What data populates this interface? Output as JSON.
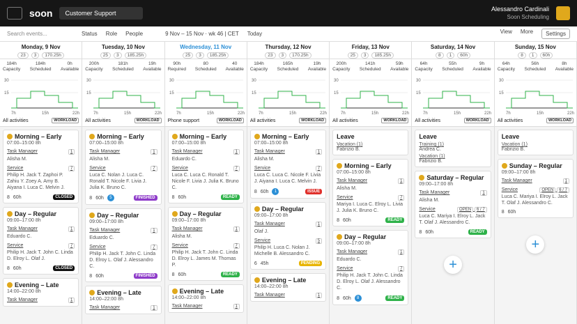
{
  "header": {
    "logo": "soon",
    "workspace": "Customer Support",
    "user": "Alessandro Cardinali",
    "org": "Soon Scheduling"
  },
  "toolbar": {
    "search": "Search events...",
    "status": "Status",
    "role": "Role",
    "people": "People",
    "range": "9 Nov – 15 Nov · wk 46 | CET",
    "today": "Today",
    "view": "View",
    "more": "More",
    "settings": "Settings"
  },
  "chart_axis": {
    "yticks": [
      "30",
      "15"
    ],
    "xticks": [
      "7h",
      "15h",
      "22h"
    ]
  },
  "days": [
    {
      "name": "Monday, 9 Nov",
      "stats": [
        "23",
        "3",
        "170.25h"
      ],
      "cap": [
        [
          "184h",
          "Capacity"
        ],
        [
          "184h",
          "Scheduled"
        ],
        [
          "0h",
          "Available"
        ]
      ],
      "filter": "All activities",
      "workload": "WORKLOAD",
      "cards": [
        {
          "title": "Morning – Early",
          "time": "07:00–15:00",
          "dur": "8h",
          "tm": "Task Manager",
          "tm_n": "1",
          "tm_p": "Alisha M.",
          "svc": "Service",
          "svc_n": "7",
          "ppl": "Philip H. Jack T. Zaphoi P. Zahiu Y. Zoey A. Amy B. Aiyana I. Luca C. Melvin J.",
          "count": "8",
          "hours": "60h",
          "status": "CLOSED",
          "status_color": "#111"
        },
        {
          "title": "Day – Regular",
          "time": "09:00–17:00",
          "dur": "8h",
          "tm": "Task Manager",
          "tm_n": "1",
          "tm_p": "Eduardo C.",
          "svc": "Service",
          "svc_n": "7",
          "ppl": "Philip H. Jack T. John C. Linda D. Elroy L. Olaf J.",
          "count": "8",
          "hours": "60h",
          "status": "CLOSED",
          "status_color": "#111"
        },
        {
          "title": "Evening – Late",
          "time": "14:00–22:00",
          "dur": "8h",
          "tm": "Task Manager",
          "tm_n": "1"
        }
      ]
    },
    {
      "name": "Tuesday, 10 Nov",
      "stats": [
        "25",
        "3",
        "185.25h"
      ],
      "cap": [
        [
          "200h",
          "Capacity"
        ],
        [
          "181h",
          "Scheduled"
        ],
        [
          "19h",
          "Available"
        ]
      ],
      "filter": "All activities",
      "workload": "WORKLOAD",
      "cards": [
        {
          "title": "Morning – Early",
          "time": "07:00–15:00",
          "dur": "8h",
          "tm": "Task Manager",
          "tm_n": "1",
          "tm_p": "Alisha M.",
          "svc": "Service",
          "svc_n": "7",
          "ppl": "Luca C. Nolan J. Luca C. Ronald T. Nicole F. Livia J. Julia K. Bruno C.",
          "count": "8",
          "hours": "60h",
          "badge": "5",
          "status": "FINISHED",
          "status_color": "#8e3bc9"
        },
        {
          "title": "Day – Regular",
          "time": "09:00–17:00",
          "dur": "8h",
          "tm": "Task Manager",
          "tm_n": "1",
          "tm_p": "Eduardo C.",
          "svc": "Service",
          "svc_n": "7",
          "ppl": "Philip H. Jack T. John C. Linda D. Elroy L. Olaf J. Alessandro C.",
          "count": "8",
          "hours": "60h",
          "status": "FINISHED",
          "status_color": "#8e3bc9"
        },
        {
          "title": "Evening – Late",
          "time": "14:00–22:00",
          "dur": "8h",
          "tm": "Task Manager",
          "tm_n": "1"
        }
      ]
    },
    {
      "name": "Wednesday, 11 Nov",
      "current": true,
      "stats": [
        "25",
        "3",
        "185.25h"
      ],
      "cap": [
        [
          "90h",
          "Required"
        ],
        [
          "80",
          "Scheduled"
        ],
        [
          "40",
          "Available"
        ]
      ],
      "filter": "Phone support",
      "workload": "WORKLOAD",
      "cards": [
        {
          "title": "Morning – Early",
          "time": "07:00–15:00",
          "dur": "8h",
          "tm": "Task Manager",
          "tm_n": "1",
          "tm_p": "Eduardo C.",
          "svc": "Service",
          "svc_n": "7",
          "ppl": "Luca C. Luca C. Ronald T. Nicole F. Livia J. Julia K. Bruno C.",
          "count": "8",
          "hours": "60h",
          "status": "READY",
          "status_color": "#2fb24a"
        },
        {
          "title": "Day – Regular",
          "time": "09:00–17:00",
          "dur": "8h",
          "tm": "Task Manager",
          "tm_n": "1",
          "tm_p": "Alisha M.",
          "svc": "Service",
          "svc_n": "7",
          "ppl": "Philip H. Jack T. John C. Linda D. Elroy L. James M. Thomas P.",
          "count": "8",
          "hours": "60h",
          "status": "READY",
          "status_color": "#2fb24a"
        },
        {
          "title": "Evening – Late",
          "time": "14:00–22:00",
          "dur": "8h",
          "tm": "Task Manager",
          "tm_n": "1"
        }
      ]
    },
    {
      "name": "Thursday, 12 Nov",
      "stats": [
        "23",
        "3",
        "170.25h"
      ],
      "cap": [
        [
          "184h",
          "Capacity"
        ],
        [
          "165h",
          "Scheduled"
        ],
        [
          "19h",
          "Available"
        ]
      ],
      "filter": "All activities",
      "workload": "WORKLOAD",
      "cards": [
        {
          "title": "Morning – Early",
          "time": "07:00–15:00",
          "dur": "8h",
          "tm": "Task Manager",
          "tm_n": "1",
          "tm_p": "Alisha M.",
          "svc": "Service",
          "svc_n": "7",
          "ppl": "Luca C. Luca C. Nicole F. Livia J. Aiyana I. Luca C. Melvin J.",
          "count": "8",
          "hours": "60h",
          "badge": "1",
          "status": "ISSUE",
          "status_color": "#e0302b"
        },
        {
          "title": "Day – Regular",
          "time": "09:00–17:00",
          "dur": "8h",
          "tm": "Task Manager",
          "tm_n": "1",
          "tm_p": "Olaf J.",
          "svc": "Service",
          "svc_n": "5",
          "ppl": "Philip H. Luca C. Nolan J. Michelle B. Alessandro C.",
          "count": "6",
          "hours": "45h",
          "status": "PENDING",
          "status_color": "#e8b400"
        },
        {
          "title": "Evening – Late",
          "time": "14:00–22:00",
          "dur": "8h",
          "tm": "Task Manager",
          "tm_n": "1"
        }
      ]
    },
    {
      "name": "Friday, 13 Nov",
      "stats": [
        "25",
        "3",
        "185.25h"
      ],
      "cap": [
        [
          "200h",
          "Capacity"
        ],
        [
          "141h",
          "Scheduled"
        ],
        [
          "59h",
          "Available"
        ]
      ],
      "filter": "All activities",
      "workload": "WORKLOAD",
      "leave": {
        "title": "Leave",
        "items": [
          {
            "type": "Vacation (1)",
            "person": "Fabrizio B."
          }
        ]
      },
      "cards": [
        {
          "title": "Morning – Early",
          "time": "07:00–15:00",
          "dur": "8h",
          "tm": "Task Manager",
          "tm_n": "1",
          "tm_p": "Alisha M.",
          "svc": "Service",
          "svc_n": "7",
          "ppl": "Mariya I. Luca C. Elroy L. Livia J. Julia K. Bruno C.",
          "count": "8",
          "hours": "60h",
          "status": "READY",
          "status_color": "#2fb24a"
        },
        {
          "title": "Day – Regular",
          "time": "09:00–17:00",
          "dur": "8h",
          "tm": "Task Manager",
          "tm_n": "1",
          "tm_p": "Eduardo C.",
          "svc": "Service",
          "svc_n": "7",
          "ppl": "Philip H. Jack T. John C. Linda D. Elroy L. Olaf J. Alessandro C.",
          "count": "8",
          "hours": "60h",
          "badge": "8",
          "status": "READY",
          "status_color": "#2fb24a"
        }
      ]
    },
    {
      "name": "Saturday, 14 Nov",
      "stats": [
        "8",
        "1",
        "60h"
      ],
      "cap": [
        [
          "64h",
          "Capacity"
        ],
        [
          "55h",
          "Scheduled"
        ],
        [
          "9h",
          "Available"
        ]
      ],
      "filter": "All activities",
      "workload": "WORKLOAD",
      "leave": {
        "title": "Leave",
        "items": [
          {
            "type": "Training (1)",
            "person": "Andrea C."
          },
          {
            "type": "Vacation (1)",
            "person": "Fabrizio B."
          }
        ]
      },
      "cards": [
        {
          "title": "Saturday – Regular",
          "time": "09:00–17:00",
          "dur": "8h",
          "tm": "Task Manager",
          "tm_n": "1",
          "tm_p": "Alisha M.",
          "svc": "Service",
          "svc_open": "OPEN",
          "svc_n": "6 / 7",
          "ppl": "Luca C. Mariya I. Elroy L. Jack T. Olaf J. Alessandro C.",
          "count": "8",
          "hours": "60h",
          "status": "READY",
          "status_color": "#2fb24a"
        }
      ],
      "plus": "+"
    },
    {
      "name": "Sunday, 15 Nov",
      "stats": [
        "8",
        "1",
        "60h"
      ],
      "cap": [
        [
          "64h",
          "Capacity"
        ],
        [
          "56h",
          "Scheduled"
        ],
        [
          "8h",
          "Available"
        ]
      ],
      "filter": "All activities",
      "workload": "WORKLOAD",
      "leave": {
        "title": "Leave",
        "items": [
          {
            "type": "Vacation (1)",
            "person": "Fabrizio B."
          }
        ]
      },
      "cards": [
        {
          "title": "Sunday – Regular",
          "time": "09:00–17:00",
          "dur": "8h",
          "tm": "Task Manager",
          "tm_n": "1",
          "svc": "Service",
          "svc_open": "OPEN",
          "svc_n": "6 / 7",
          "ppl": "Luca C. Mariya I. Elroy L. Jack T. Olaf J. Alessandro C.",
          "count": "8",
          "hours": "60h"
        }
      ],
      "plus": "+"
    }
  ]
}
